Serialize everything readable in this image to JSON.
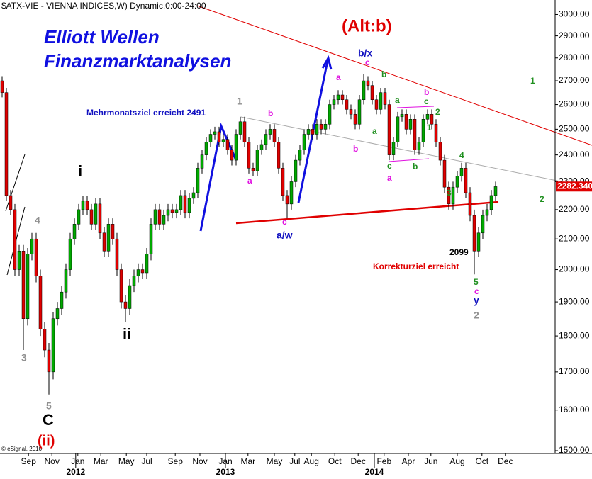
{
  "chart_data": {
    "type": "candlestick",
    "title": "$ATX-VIE - VIENNA INDICES,W) Dynamic,0:00-24:00",
    "y_scale": "log",
    "ylim": [
      1500,
      3070
    ],
    "yticks": [
      {
        "value": 1500,
        "label": "1500.00"
      },
      {
        "value": 1600,
        "label": "1600.00"
      },
      {
        "value": 1700,
        "label": "1700.00"
      },
      {
        "value": 1800,
        "label": "1800.00"
      },
      {
        "value": 1900,
        "label": "1900.00"
      },
      {
        "value": 2000,
        "label": "2000.00"
      },
      {
        "value": 2100,
        "label": "2100.00"
      },
      {
        "value": 2200,
        "label": "2200.00"
      },
      {
        "value": 2300,
        "label": "2300.00"
      },
      {
        "value": 2400,
        "label": "2400.00"
      },
      {
        "value": 2500,
        "label": "2500.00"
      },
      {
        "value": 2600,
        "label": "2600.00"
      },
      {
        "value": 2700,
        "label": "2700.00"
      },
      {
        "value": 2800,
        "label": "2800.00"
      },
      {
        "value": 2900,
        "label": "2900.00"
      },
      {
        "value": 3000,
        "label": "3000.00"
      }
    ],
    "xticks": [
      {
        "value": 6.2,
        "label": "Sep"
      },
      {
        "value": 11.7,
        "label": "Nov"
      },
      {
        "value": 17.8,
        "label": "Jan"
      },
      {
        "value": 23.2,
        "label": "Mar"
      },
      {
        "value": 29.2,
        "label": "May"
      },
      {
        "value": 34,
        "label": "Jul"
      },
      {
        "value": 40.7,
        "label": "Sep"
      },
      {
        "value": 46.5,
        "label": "Nov"
      },
      {
        "value": 52.5,
        "label": "Jan"
      },
      {
        "value": 57.8,
        "label": "Mar"
      },
      {
        "value": 64,
        "label": "May"
      },
      {
        "value": 68.8,
        "label": "Jul"
      },
      {
        "value": 72.7,
        "label": "Aug"
      },
      {
        "value": 78.2,
        "label": "Oct"
      },
      {
        "value": 83.7,
        "label": "Dec"
      },
      {
        "value": 89.8,
        "label": "Feb"
      },
      {
        "value": 95.5,
        "label": "Apr"
      },
      {
        "value": 100.8,
        "label": "Jun"
      },
      {
        "value": 107,
        "label": "Aug"
      },
      {
        "value": 112.8,
        "label": "Oct"
      },
      {
        "value": 118.3,
        "label": "Dec"
      }
    ],
    "x_year_ticks": [
      {
        "value": 17.3,
        "label": "2012"
      },
      {
        "value": 52.5,
        "label": "2013"
      },
      {
        "value": 87.5,
        "label": "2014"
      }
    ],
    "up_color": "#00a800",
    "down_color": "#e00000",
    "last_price": {
      "value": 2282.34,
      "label": "2282.340"
    },
    "open": [
      2700,
      2650,
      2250,
      2200,
      2000,
      2060,
      1850,
      2050,
      2100,
      1980,
      1820,
      1760,
      1700,
      1850,
      1880,
      1930,
      2000,
      2100,
      2150,
      2200,
      2230,
      2200,
      2150,
      2220,
      2120,
      2060,
      2150,
      2100,
      2000,
      1900,
      1880,
      1950,
      1980,
      2000,
      1990,
      2050,
      2150,
      2200,
      2150,
      2180,
      2200,
      2190,
      2200,
      2250,
      2190,
      2240,
      2260,
      2350,
      2400,
      2450,
      2480,
      2490,
      2450,
      2460,
      2420,
      2380,
      2480,
      2530,
      2450,
      2350,
      2340,
      2420,
      2440,
      2480,
      2500,
      2450,
      2350,
      2250,
      2220,
      2300,
      2380,
      2420,
      2480,
      2500,
      2480,
      2520,
      2500,
      2520,
      2600,
      2620,
      2640,
      2620,
      2580,
      2560,
      2520,
      2620,
      2700,
      2680,
      2620,
      2580,
      2650,
      2600,
      2400,
      2450,
      2550,
      2560,
      2500,
      2540,
      2420,
      2450,
      2540,
      2560,
      2520,
      2450,
      2380,
      2280,
      2220,
      2280,
      2320,
      2350,
      2260,
      2180,
      2060,
      2120,
      2180,
      2200,
      2250
    ],
    "high": [
      2720,
      2670,
      2270,
      2220,
      2080,
      2080,
      2070,
      2120,
      2120,
      2000,
      1840,
      1780,
      1870,
      1900,
      1950,
      2020,
      2120,
      2170,
      2220,
      2250,
      2250,
      2220,
      2240,
      2240,
      2140,
      2170,
      2170,
      2120,
      2020,
      1920,
      1970,
      2000,
      2020,
      2020,
      2070,
      2170,
      2220,
      2220,
      2200,
      2220,
      2220,
      2220,
      2270,
      2270,
      2260,
      2280,
      2370,
      2420,
      2470,
      2500,
      2510,
      2510,
      2480,
      2480,
      2440,
      2500,
      2550,
      2550,
      2470,
      2370,
      2440,
      2460,
      2500,
      2520,
      2520,
      2470,
      2370,
      2270,
      2320,
      2400,
      2440,
      2500,
      2520,
      2520,
      2540,
      2540,
      2540,
      2620,
      2640,
      2660,
      2660,
      2640,
      2600,
      2580,
      2640,
      2730,
      2720,
      2700,
      2640,
      2670,
      2670,
      2620,
      2470,
      2570,
      2580,
      2580,
      2560,
      2560,
      2470,
      2560,
      2580,
      2580,
      2540,
      2470,
      2400,
      2300,
      2300,
      2340,
      2370,
      2370,
      2280,
      2200,
      2140,
      2200,
      2220,
      2270,
      2300
    ],
    "low": [
      2630,
      2230,
      2180,
      1980,
      1980,
      1760,
      1830,
      2030,
      1960,
      1800,
      1740,
      1640,
      1680,
      1830,
      1860,
      1910,
      1980,
      2080,
      2130,
      2180,
      2180,
      2130,
      2130,
      2100,
      2040,
      2040,
      2080,
      1980,
      1880,
      1840,
      1860,
      1930,
      1960,
      1970,
      1970,
      2030,
      2130,
      2130,
      2130,
      2160,
      2170,
      2170,
      2180,
      2170,
      2170,
      2220,
      2240,
      2330,
      2380,
      2430,
      2460,
      2430,
      2430,
      2400,
      2360,
      2360,
      2460,
      2430,
      2330,
      2320,
      2320,
      2400,
      2420,
      2460,
      2430,
      2330,
      2230,
      2170,
      2200,
      2280,
      2360,
      2400,
      2460,
      2460,
      2460,
      2480,
      2480,
      2500,
      2580,
      2600,
      2600,
      2560,
      2540,
      2500,
      2500,
      2600,
      2660,
      2600,
      2560,
      2560,
      2580,
      2380,
      2380,
      2430,
      2530,
      2480,
      2480,
      2400,
      2400,
      2430,
      2520,
      2500,
      2430,
      2360,
      2260,
      2200,
      2200,
      2260,
      2300,
      2240,
      2160,
      1985,
      2040,
      2100,
      2160,
      2180,
      2230
    ],
    "close": [
      2650,
      2250,
      2200,
      2000,
      2060,
      1850,
      2050,
      2100,
      1980,
      1820,
      1760,
      1700,
      1850,
      1880,
      1930,
      2000,
      2100,
      2150,
      2200,
      2230,
      2200,
      2150,
      2220,
      2120,
      2060,
      2150,
      2100,
      2000,
      1900,
      1880,
      1950,
      1980,
      2000,
      1990,
      2050,
      2150,
      2200,
      2150,
      2180,
      2200,
      2190,
      2200,
      2250,
      2190,
      2240,
      2260,
      2350,
      2400,
      2450,
      2480,
      2490,
      2450,
      2460,
      2420,
      2380,
      2480,
      2530,
      2450,
      2350,
      2340,
      2420,
      2440,
      2480,
      2500,
      2450,
      2350,
      2250,
      2220,
      2300,
      2380,
      2420,
      2480,
      2500,
      2480,
      2520,
      2500,
      2520,
      2600,
      2620,
      2640,
      2620,
      2580,
      2560,
      2520,
      2620,
      2700,
      2680,
      2620,
      2580,
      2650,
      2600,
      2400,
      2450,
      2550,
      2560,
      2500,
      2540,
      2420,
      2450,
      2540,
      2560,
      2520,
      2450,
      2380,
      2280,
      2220,
      2280,
      2320,
      2350,
      2260,
      2180,
      2060,
      2120,
      2180,
      2200,
      2250,
      2282
    ],
    "annotations": [
      "Elliott Wellen",
      "Finanzmarktanalysen",
      "(Alt:b)",
      "Mehrmonatsziel erreicht 2491",
      "Korrekturziel erreicht",
      "2099",
      "© eSignal, 2010",
      "3",
      "4",
      "5",
      "C",
      "(ii)",
      "i",
      "ii",
      "1",
      "a",
      "b",
      "c",
      "a/w",
      "a",
      "b/x",
      "c",
      "b",
      "b",
      "a",
      "a",
      "b",
      "c",
      "2",
      "1",
      "c",
      "a",
      "b",
      "3",
      "4",
      "5",
      "c",
      "y",
      "2",
      "1",
      "2"
    ]
  }
}
